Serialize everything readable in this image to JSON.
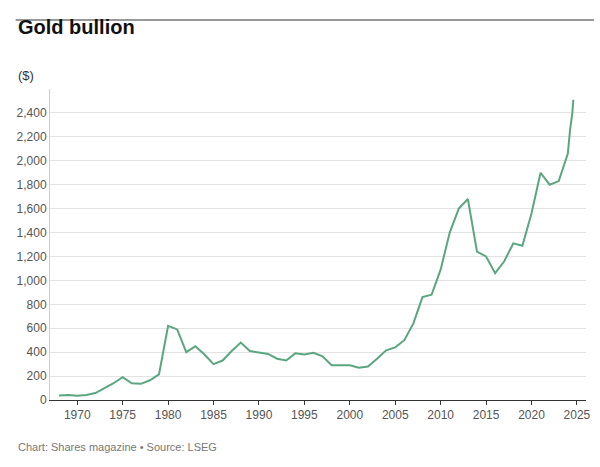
{
  "chart_data": {
    "type": "line",
    "title": "Gold bullion",
    "subtitle": "($)",
    "source": "Chart: Shares magazine • Source: LSEG",
    "x": [
      1968,
      1969,
      1970,
      1971,
      1972,
      1973,
      1974,
      1975,
      1976,
      1977,
      1978,
      1979,
      1980,
      1981,
      1982,
      1983,
      1984,
      1985,
      1986,
      1987,
      1988,
      1989,
      1990,
      1991,
      1992,
      1993,
      1994,
      1995,
      1996,
      1997,
      1998,
      1999,
      2000,
      2001,
      2002,
      2003,
      2004,
      2005,
      2006,
      2007,
      2008,
      2009,
      2010,
      2011,
      2012,
      2013,
      2014,
      2015,
      2016,
      2017,
      2018,
      2019,
      2020,
      2021,
      2022,
      2023,
      2024,
      2024.25,
      2024.5,
      2024.6
    ],
    "values": [
      38,
      41,
      36,
      41,
      58,
      97,
      140,
      190,
      140,
      135,
      165,
      215,
      620,
      590,
      400,
      450,
      380,
      300,
      330,
      410,
      480,
      410,
      395,
      385,
      345,
      330,
      390,
      380,
      395,
      365,
      290,
      290,
      290,
      270,
      280,
      345,
      415,
      440,
      500,
      640,
      860,
      880,
      1090,
      1400,
      1600,
      1680,
      1240,
      1200,
      1060,
      1160,
      1310,
      1290,
      1560,
      1900,
      1800,
      1830,
      2060,
      2260,
      2400,
      2510
    ],
    "color": "#5aa67f",
    "xlim": [
      1967,
      2026
    ],
    "xticks": [
      1970,
      1975,
      1980,
      1985,
      1990,
      1995,
      2000,
      2005,
      2010,
      2015,
      2020,
      2025
    ],
    "ylim": [
      0,
      2600
    ],
    "yticks": [
      0,
      200,
      400,
      600,
      800,
      {
        "value": 1000,
        "label": "1,000"
      },
      {
        "value": 1200,
        "label": "1,200"
      },
      {
        "value": 1400,
        "label": "1,400"
      },
      {
        "value": 1600,
        "label": "1,600"
      },
      {
        "value": 1800,
        "label": "1,800"
      },
      {
        "value": 2000,
        "label": "2,000"
      },
      {
        "value": 2200,
        "label": "2,200"
      },
      {
        "value": 2400,
        "label": "2,400"
      }
    ],
    "grid": true
  }
}
